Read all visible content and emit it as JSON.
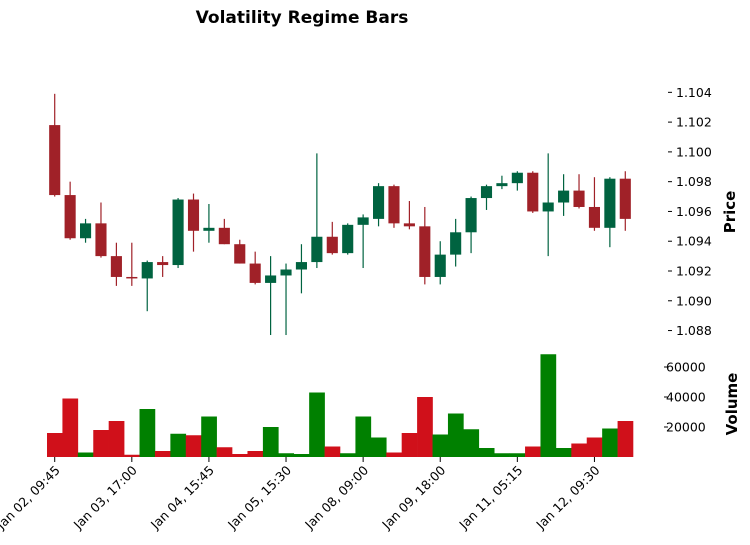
{
  "chart_data": {
    "type": "candlestick",
    "title": "Volatility Regime Bars",
    "price_panel": {
      "ylabel": "Price",
      "ylim": [
        1.0875,
        1.1055
      ],
      "yticks": [
        "1.088",
        "1.090",
        "1.092",
        "1.094",
        "1.096",
        "1.098",
        "1.100",
        "1.102",
        "1.104"
      ],
      "ytick_values": [
        1.088,
        1.09,
        1.092,
        1.094,
        1.096,
        1.098,
        1.1,
        1.102,
        1.104
      ],
      "up_color": "#006340",
      "down_color": "#A02128"
    },
    "volume_panel": {
      "ylabel": "Volume",
      "ylim": [
        0,
        70000
      ],
      "yticks": [
        "20000",
        "40000",
        "60000"
      ],
      "ytick_values": [
        20000,
        40000,
        60000
      ],
      "up_color": "#008000",
      "down_color": "#D0101A"
    },
    "xticks": [
      {
        "index": 0,
        "label": "Jan 02, 09:45"
      },
      {
        "index": 5,
        "label": "Jan 03, 17:00"
      },
      {
        "index": 10,
        "label": "Jan 04, 15:45"
      },
      {
        "index": 15,
        "label": "Jan 05, 15:30"
      },
      {
        "index": 20,
        "label": "Jan 08, 09:00"
      },
      {
        "index": 25,
        "label": "Jan 09, 18:00"
      },
      {
        "index": 30,
        "label": "Jan 11, 05:15"
      },
      {
        "index": 35,
        "label": "Jan 12, 09:30"
      }
    ],
    "candles": [
      {
        "o": 1.1018,
        "h": 1.1039,
        "l": 1.097,
        "c": 1.0971,
        "v": 16000
      },
      {
        "o": 1.0971,
        "h": 1.098,
        "l": 1.0941,
        "c": 1.0942,
        "v": 39000
      },
      {
        "o": 1.0942,
        "h": 1.0955,
        "l": 1.0939,
        "c": 1.0952,
        "v": 3000
      },
      {
        "o": 1.0952,
        "h": 1.0966,
        "l": 1.0929,
        "c": 1.093,
        "v": 18000
      },
      {
        "o": 1.093,
        "h": 1.0939,
        "l": 1.091,
        "c": 1.0916,
        "v": 24000
      },
      {
        "o": 1.0916,
        "h": 1.0939,
        "l": 1.091,
        "c": 1.0915,
        "v": 1500
      },
      {
        "o": 1.0915,
        "h": 1.0927,
        "l": 1.0893,
        "c": 1.0926,
        "v": 32000
      },
      {
        "o": 1.0926,
        "h": 1.093,
        "l": 1.0916,
        "c": 1.0924,
        "v": 4000
      },
      {
        "o": 1.0924,
        "h": 1.0969,
        "l": 1.0922,
        "c": 1.0968,
        "v": 15500
      },
      {
        "o": 1.0968,
        "h": 1.0972,
        "l": 1.0933,
        "c": 1.0947,
        "v": 14500
      },
      {
        "o": 1.0947,
        "h": 1.0965,
        "l": 1.0939,
        "c": 1.0949,
        "v": 27000
      },
      {
        "o": 1.0949,
        "h": 1.0955,
        "l": 1.0938,
        "c": 1.0938,
        "v": 6500
      },
      {
        "o": 1.0938,
        "h": 1.0941,
        "l": 1.0925,
        "c": 1.0925,
        "v": 2000
      },
      {
        "o": 1.0925,
        "h": 1.0933,
        "l": 1.0911,
        "c": 1.0912,
        "v": 4000
      },
      {
        "o": 1.0912,
        "h": 1.093,
        "l": 1.0877,
        "c": 1.0917,
        "v": 20000
      },
      {
        "o": 1.0917,
        "h": 1.0925,
        "l": 1.0877,
        "c": 1.0921,
        "v": 2500
      },
      {
        "o": 1.0921,
        "h": 1.0938,
        "l": 1.0905,
        "c": 1.0926,
        "v": 2000
      },
      {
        "o": 1.0926,
        "h": 1.0999,
        "l": 1.0922,
        "c": 1.0943,
        "v": 43000
      },
      {
        "o": 1.0943,
        "h": 1.0953,
        "l": 1.0931,
        "c": 1.0932,
        "v": 7000
      },
      {
        "o": 1.0932,
        "h": 1.0952,
        "l": 1.0931,
        "c": 1.0951,
        "v": 2500
      },
      {
        "o": 1.0951,
        "h": 1.0958,
        "l": 1.0922,
        "c": 1.0956,
        "v": 27000
      },
      {
        "o": 1.0955,
        "h": 1.0979,
        "l": 1.095,
        "c": 1.0977,
        "v": 13000
      },
      {
        "o": 1.0977,
        "h": 1.0978,
        "l": 1.0949,
        "c": 1.0952,
        "v": 3000
      },
      {
        "o": 1.0952,
        "h": 1.0967,
        "l": 1.0948,
        "c": 1.095,
        "v": 16000
      },
      {
        "o": 1.095,
        "h": 1.0963,
        "l": 1.0911,
        "c": 1.0916,
        "v": 40000
      },
      {
        "o": 1.0916,
        "h": 1.094,
        "l": 1.0911,
        "c": 1.0931,
        "v": 15000
      },
      {
        "o": 1.0931,
        "h": 1.0955,
        "l": 1.0923,
        "c": 1.0946,
        "v": 29000
      },
      {
        "o": 1.0946,
        "h": 1.097,
        "l": 1.0932,
        "c": 1.0969,
        "v": 18500
      },
      {
        "o": 1.0969,
        "h": 1.0978,
        "l": 1.0961,
        "c": 1.0977,
        "v": 6000
      },
      {
        "o": 1.0977,
        "h": 1.0984,
        "l": 1.0975,
        "c": 1.0979,
        "v": 2500
      },
      {
        "o": 1.0979,
        "h": 1.0987,
        "l": 1.0974,
        "c": 1.0986,
        "v": 2500
      },
      {
        "o": 1.0986,
        "h": 1.0987,
        "l": 1.0959,
        "c": 1.096,
        "v": 7000
      },
      {
        "o": 1.096,
        "h": 1.0999,
        "l": 1.093,
        "c": 1.0966,
        "v": 68500
      },
      {
        "o": 1.0966,
        "h": 1.0985,
        "l": 1.0957,
        "c": 1.0974,
        "v": 6000
      },
      {
        "o": 1.0974,
        "h": 1.0985,
        "l": 1.0962,
        "c": 1.0963,
        "v": 9000
      },
      {
        "o": 1.0963,
        "h": 1.0983,
        "l": 1.0947,
        "c": 1.0949,
        "v": 13000
      },
      {
        "o": 1.0949,
        "h": 1.0983,
        "l": 1.0936,
        "c": 1.0982,
        "v": 19000
      },
      {
        "o": 1.0982,
        "h": 1.0987,
        "l": 1.0947,
        "c": 1.0955,
        "v": 24000
      }
    ]
  }
}
